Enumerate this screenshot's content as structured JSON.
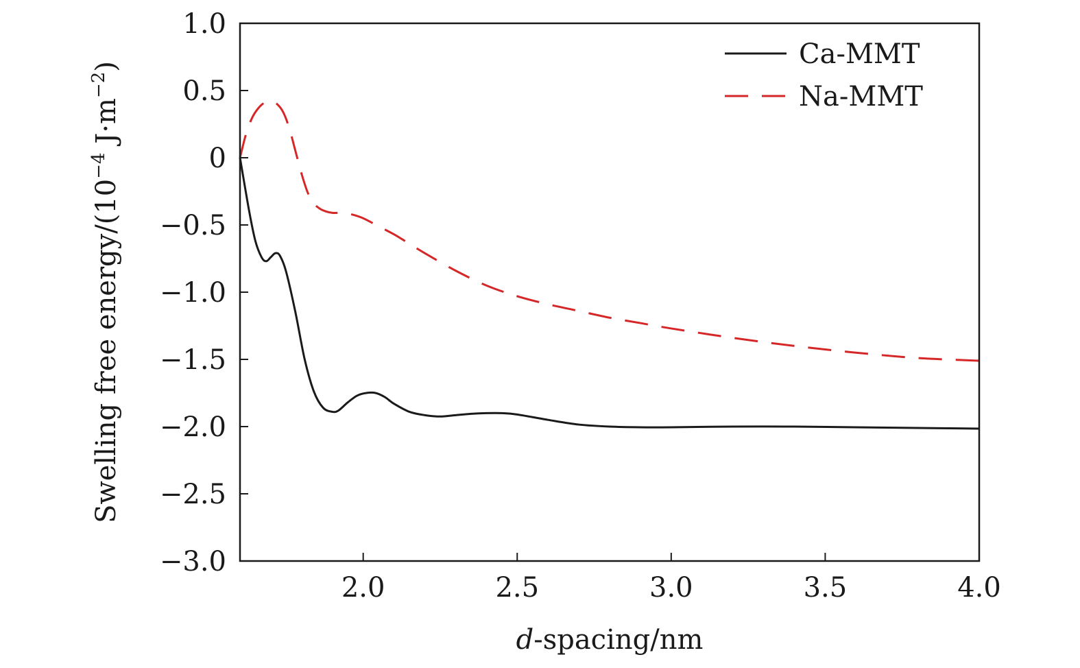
{
  "chart_data": {
    "type": "line",
    "title": "",
    "xlabel": {
      "italic": "d",
      "rest": "-spacing/nm"
    },
    "ylabel": {
      "text": "Swelling free energy/(10",
      "sup1": "−4",
      "unit": " J·m",
      "sup2": "−2",
      "close": ")"
    },
    "xlim": [
      1.6,
      4.0
    ],
    "ylim": [
      -3.0,
      1.0
    ],
    "grid": false,
    "legend_position": "top-right",
    "x_ticks": [
      {
        "value": 2.0,
        "label": "2.0"
      },
      {
        "value": 2.5,
        "label": "2.5"
      },
      {
        "value": 3.0,
        "label": "3.0"
      },
      {
        "value": 3.5,
        "label": "3.5"
      },
      {
        "value": 4.0,
        "label": "4.0"
      }
    ],
    "y_ticks": [
      {
        "value": 1.0,
        "label": "1.0"
      },
      {
        "value": 0.5,
        "label": "0.5"
      },
      {
        "value": 0,
        "label": "0"
      },
      {
        "value": -0.5,
        "label": "−0.5"
      },
      {
        "value": -1.0,
        "label": "−1.0"
      },
      {
        "value": -1.5,
        "label": "−1.5"
      },
      {
        "value": -2.0,
        "label": "−2.0"
      },
      {
        "value": -2.5,
        "label": "−2.5"
      },
      {
        "value": -3.0,
        "label": "−3.0"
      }
    ],
    "series": [
      {
        "name": "Ca-MMT",
        "color": "#1a1a1a",
        "dash": "solid",
        "x": [
          1.6,
          1.63,
          1.65,
          1.67,
          1.685,
          1.7,
          1.715,
          1.73,
          1.75,
          1.78,
          1.81,
          1.84,
          1.87,
          1.9,
          1.92,
          1.95,
          1.98,
          2.01,
          2.04,
          2.07,
          2.1,
          2.15,
          2.2,
          2.25,
          2.3,
          2.35,
          2.4,
          2.45,
          2.5,
          2.6,
          2.7,
          2.8,
          2.9,
          3.0,
          3.2,
          3.4,
          3.6,
          3.8,
          4.0
        ],
        "y": [
          0.0,
          -0.4,
          -0.62,
          -0.74,
          -0.77,
          -0.74,
          -0.71,
          -0.73,
          -0.85,
          -1.15,
          -1.5,
          -1.74,
          -1.86,
          -1.89,
          -1.88,
          -1.82,
          -1.77,
          -1.75,
          -1.75,
          -1.78,
          -1.83,
          -1.89,
          -1.915,
          -1.925,
          -1.915,
          -1.905,
          -1.9,
          -1.9,
          -1.91,
          -1.95,
          -1.985,
          -2.0,
          -2.005,
          -2.005,
          -2.0,
          -2.0,
          -2.005,
          -2.01,
          -2.015
        ]
      },
      {
        "name": "Na-MMT",
        "color": "#d62728",
        "dash": "dashed",
        "x": [
          1.6,
          1.62,
          1.64,
          1.66,
          1.68,
          1.7,
          1.72,
          1.74,
          1.76,
          1.78,
          1.8,
          1.82,
          1.84,
          1.86,
          1.88,
          1.9,
          1.93,
          1.96,
          2.0,
          2.05,
          2.1,
          2.15,
          2.2,
          2.3,
          2.4,
          2.5,
          2.6,
          2.7,
          2.8,
          2.9,
          3.0,
          3.2,
          3.4,
          3.6,
          3.8,
          4.0
        ],
        "y": [
          0.0,
          0.18,
          0.3,
          0.37,
          0.41,
          0.42,
          0.4,
          0.34,
          0.22,
          0.05,
          -0.12,
          -0.26,
          -0.34,
          -0.38,
          -0.4,
          -0.41,
          -0.41,
          -0.42,
          -0.45,
          -0.51,
          -0.57,
          -0.64,
          -0.71,
          -0.84,
          -0.95,
          -1.03,
          -1.09,
          -1.14,
          -1.19,
          -1.23,
          -1.27,
          -1.34,
          -1.4,
          -1.45,
          -1.49,
          -1.51
        ]
      }
    ]
  }
}
